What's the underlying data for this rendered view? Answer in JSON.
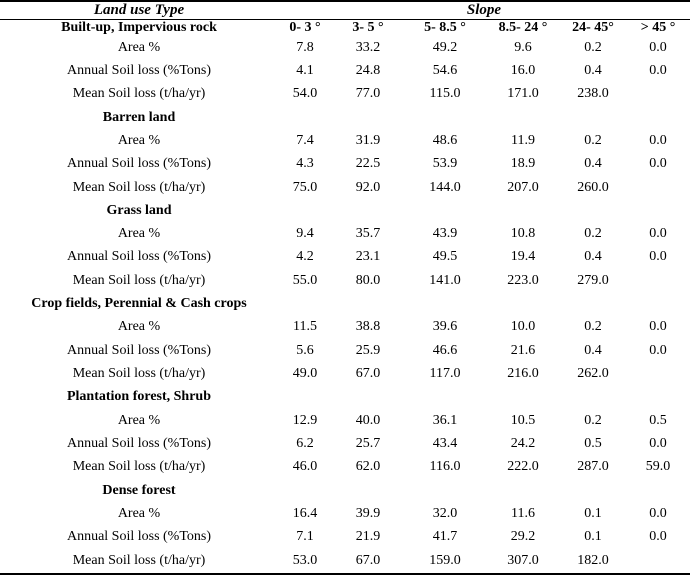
{
  "table": {
    "corner_header": "Land use Type",
    "slope_header": "Slope",
    "columns": [
      "0- 3 °",
      "3- 5 °",
      "5- 8.5 °",
      "8.5- 24 °",
      "24- 45°",
      "> 45 °"
    ],
    "sections": [
      {
        "name": "Built-up, Impervious rock",
        "rows": [
          {
            "label": "Area %",
            "values": [
              "7.8",
              "33.2",
              "49.2",
              "9.6",
              "0.2",
              "0.0"
            ]
          },
          {
            "label": "Annual Soil loss (%Tons)",
            "values": [
              "4.1",
              "24.8",
              "54.6",
              "16.0",
              "0.4",
              "0.0"
            ]
          },
          {
            "label": "Mean Soil loss (t/ha/yr)",
            "values": [
              "54.0",
              "77.0",
              "115.0",
              "171.0",
              "238.0",
              ""
            ]
          }
        ]
      },
      {
        "name": "Barren land",
        "rows": [
          {
            "label": "Area %",
            "values": [
              "7.4",
              "31.9",
              "48.6",
              "11.9",
              "0.2",
              "0.0"
            ]
          },
          {
            "label": "Annual Soil loss (%Tons)",
            "values": [
              "4.3",
              "22.5",
              "53.9",
              "18.9",
              "0.4",
              "0.0"
            ]
          },
          {
            "label": "Mean Soil loss (t/ha/yr)",
            "values": [
              "75.0",
              "92.0",
              "144.0",
              "207.0",
              "260.0",
              ""
            ]
          }
        ]
      },
      {
        "name": "Grass land",
        "rows": [
          {
            "label": "Area %",
            "values": [
              "9.4",
              "35.7",
              "43.9",
              "10.8",
              "0.2",
              "0.0"
            ]
          },
          {
            "label": "Annual Soil loss (%Tons)",
            "values": [
              "4.2",
              "23.1",
              "49.5",
              "19.4",
              "0.4",
              "0.0"
            ]
          },
          {
            "label": "Mean Soil loss (t/ha/yr)",
            "values": [
              "55.0",
              "80.0",
              "141.0",
              "223.0",
              "279.0",
              ""
            ]
          }
        ]
      },
      {
        "name": "Crop fields, Perennial & Cash crops",
        "rows": [
          {
            "label": "Area %",
            "values": [
              "11.5",
              "38.8",
              "39.6",
              "10.0",
              "0.2",
              "0.0"
            ]
          },
          {
            "label": "Annual Soil loss (%Tons)",
            "values": [
              "5.6",
              "25.9",
              "46.6",
              "21.6",
              "0.4",
              "0.0"
            ]
          },
          {
            "label": "Mean Soil loss (t/ha/yr)",
            "values": [
              "49.0",
              "67.0",
              "117.0",
              "216.0",
              "262.0",
              ""
            ]
          }
        ]
      },
      {
        "name": "Plantation forest, Shrub",
        "rows": [
          {
            "label": "Area %",
            "values": [
              "12.9",
              "40.0",
              "36.1",
              "10.5",
              "0.2",
              "0.5"
            ]
          },
          {
            "label": "Annual Soil loss (%Tons)",
            "values": [
              "6.2",
              "25.7",
              "43.4",
              "24.2",
              "0.5",
              "0.0"
            ]
          },
          {
            "label": "Mean Soil loss (t/ha/yr)",
            "values": [
              "46.0",
              "62.0",
              "116.0",
              "222.0",
              "287.0",
              "59.0"
            ]
          }
        ]
      },
      {
        "name": "Dense forest",
        "rows": [
          {
            "label": "Area %",
            "values": [
              "16.4",
              "39.9",
              "32.0",
              "11.6",
              "0.1",
              "0.0"
            ]
          },
          {
            "label": "Annual Soil loss (%Tons)",
            "values": [
              "7.1",
              "21.9",
              "41.7",
              "29.2",
              "0.1",
              "0.0"
            ]
          },
          {
            "label": "Mean Soil loss (t/ha/yr)",
            "values": [
              "53.0",
              "67.0",
              "159.0",
              "307.0",
              "182.0",
              ""
            ]
          }
        ]
      }
    ]
  }
}
